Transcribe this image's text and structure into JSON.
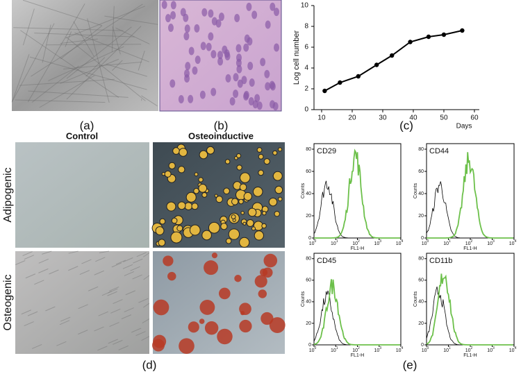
{
  "panels": {
    "a": "(a)",
    "b": "(b)",
    "c": "(c)",
    "d": "(d)",
    "e": "(e)"
  },
  "panel_d": {
    "columns": [
      "Control",
      "Osteoinductive"
    ],
    "rows": [
      "Adipogenic",
      "Osteogenic"
    ]
  },
  "chart_data": {
    "type": "line",
    "y_label": "Log cell number",
    "x_label": "Days",
    "x": [
      11,
      16,
      22,
      28,
      33,
      39,
      45,
      50,
      56
    ],
    "values": [
      1.8,
      2.6,
      3.2,
      4.3,
      5.2,
      6.5,
      7.0,
      7.2,
      7.6
    ],
    "color": "#000000",
    "xlim": [
      7.5,
      61.6
    ],
    "xticks": [
      10,
      20,
      30,
      40,
      50,
      60
    ],
    "ylim": [
      0,
      10
    ],
    "yticks": [
      0,
      2,
      4,
      6,
      8,
      10
    ]
  },
  "flow": {
    "y_label": "Counts",
    "x_label": "FL1-H",
    "yticks": [
      0,
      20,
      40,
      60,
      80
    ],
    "xtick_base": "10",
    "xtick_exponents": [
      "0",
      "1",
      "2",
      "3",
      "4"
    ],
    "markers": [
      "CD29",
      "CD44",
      "CD45",
      "CD11b"
    ]
  }
}
